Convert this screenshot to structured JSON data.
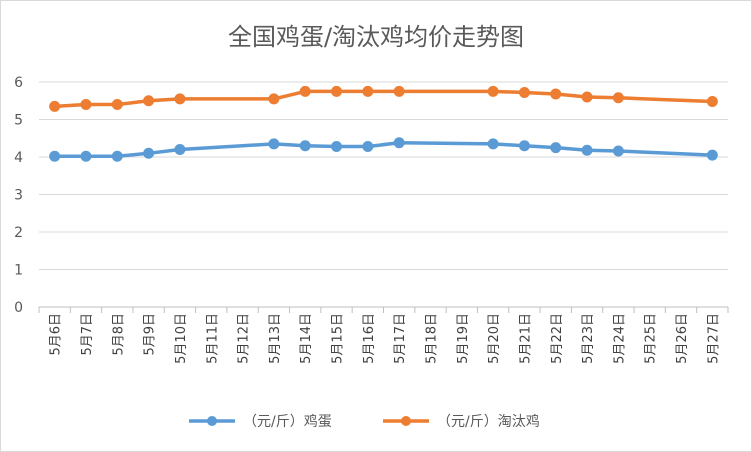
{
  "chart_data": {
    "type": "line",
    "title": "全国鸡蛋/淘汰鸡均价走势图",
    "categories": [
      "5月6日",
      "5月7日",
      "5月8日",
      "5月9日",
      "5月10日",
      "5月11日",
      "5月12日",
      "5月13日",
      "5月14日",
      "5月15日",
      "5月16日",
      "5月17日",
      "5月18日",
      "5月19日",
      "5月20日",
      "5月21日",
      "5月22日",
      "5月23日",
      "5月24日",
      "5月25日",
      "5月26日",
      "5月27日"
    ],
    "ylim": [
      0,
      6
    ],
    "yticks": [
      0,
      1,
      2,
      3,
      4,
      5,
      6
    ],
    "grid": "horizontal",
    "legend_position": "bottom",
    "series": [
      {
        "name": "（元/斤）鸡蛋",
        "color": "#5B9BD5",
        "values": [
          4.02,
          4.02,
          4.02,
          4.1,
          4.2,
          null,
          null,
          4.35,
          4.3,
          4.28,
          4.28,
          4.38,
          null,
          null,
          4.35,
          4.3,
          4.25,
          4.18,
          4.16,
          null,
          null,
          4.05
        ]
      },
      {
        "name": "（元/斤）淘汰鸡",
        "color": "#ED7D31",
        "values": [
          5.35,
          5.4,
          5.4,
          5.5,
          5.55,
          null,
          null,
          5.55,
          5.75,
          5.75,
          5.75,
          5.75,
          null,
          null,
          5.75,
          5.72,
          5.68,
          5.6,
          5.58,
          null,
          null,
          5.48
        ]
      }
    ]
  }
}
